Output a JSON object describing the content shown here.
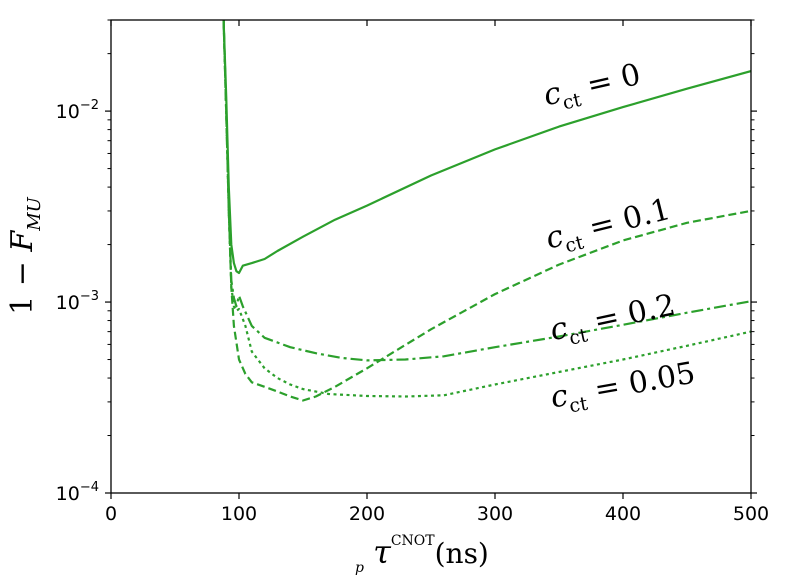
{
  "chart_data": {
    "type": "line",
    "title": "",
    "xlabel": "τ_p^CNOT(ns)",
    "ylabel": "1 − F_MU",
    "xlim": [
      0,
      500
    ],
    "ylim": [
      0.0001,
      0.03
    ],
    "yscale": "log",
    "grid": false,
    "legend": "none",
    "x_ticks": [
      0,
      100,
      200,
      300,
      400,
      500
    ],
    "x_tick_labels": [
      "0",
      "100",
      "200",
      "300",
      "400",
      "500"
    ],
    "y_ticks": [
      0.0001,
      0.001,
      0.01
    ],
    "y_tick_labels": [
      {
        "base": "10",
        "exp": "−4"
      },
      {
        "base": "10",
        "exp": "−3"
      },
      {
        "base": "10",
        "exp": "−2"
      }
    ],
    "series": [
      {
        "linestyle": "solid",
        "color": "#2ca02c",
        "x": [
          88,
          90,
          92,
          94,
          96,
          98,
          100,
          103,
          110,
          120,
          130,
          150,
          175,
          200,
          250,
          300,
          350,
          400,
          450,
          500
        ],
        "y": [
          0.03,
          0.012,
          0.004,
          0.002,
          0.0016,
          0.00145,
          0.00142,
          0.00155,
          0.0016,
          0.00168,
          0.00185,
          0.0022,
          0.0027,
          0.0032,
          0.0046,
          0.0063,
          0.0083,
          0.0105,
          0.0131,
          0.0162
        ]
      },
      {
        "linestyle": "dashed",
        "color": "#2ca02c",
        "x": [
          88,
          90,
          92,
          94,
          96,
          100,
          105,
          110,
          120,
          130,
          140,
          150,
          160,
          175,
          200,
          250,
          300,
          350,
          400,
          450,
          500
        ],
        "y": [
          0.03,
          0.01,
          0.003,
          0.0012,
          0.00075,
          0.0005,
          0.00042,
          0.00038,
          0.00036,
          0.00034,
          0.00032,
          0.000305,
          0.00032,
          0.00036,
          0.00045,
          0.00072,
          0.0011,
          0.00157,
          0.0021,
          0.0026,
          0.003
        ]
      },
      {
        "linestyle": "dashdot",
        "color": "#2ca02c",
        "x": [
          88,
          90,
          92,
          94,
          96,
          98,
          100,
          103,
          110,
          120,
          140,
          160,
          180,
          200,
          230,
          260,
          300,
          350,
          400,
          450,
          500
        ],
        "y": [
          0.03,
          0.01,
          0.003,
          0.0013,
          0.00105,
          0.00095,
          0.00108,
          0.00095,
          0.00075,
          0.00065,
          0.00058,
          0.00054,
          0.00051,
          0.000495,
          0.0005,
          0.00052,
          0.00058,
          0.00066,
          0.00076,
          0.00088,
          0.00101
        ]
      },
      {
        "linestyle": "dotted",
        "color": "#2ca02c",
        "x": [
          88,
          90,
          92,
          94,
          96,
          98,
          100,
          105,
          110,
          120,
          130,
          140,
          150,
          170,
          200,
          230,
          260,
          300,
          350,
          400,
          450,
          500
        ],
        "y": [
          0.03,
          0.01,
          0.003,
          0.0012,
          0.00095,
          0.0009,
          0.00092,
          0.00075,
          0.00055,
          0.00045,
          0.0004,
          0.00037,
          0.00035,
          0.00033,
          0.000322,
          0.00032,
          0.000325,
          0.00037,
          0.00043,
          0.0005,
          0.00059,
          0.0007
        ]
      }
    ],
    "annotations": [
      {
        "var": "c",
        "sub": "ct",
        "rest": " = 0",
        "rotation": -13
      },
      {
        "var": "c",
        "sub": "ct",
        "rest": " = 0.1",
        "rotation": -14
      },
      {
        "var": "c",
        "sub": "ct",
        "rest": " = 0.2",
        "rotation": -12
      },
      {
        "var": "c",
        "sub": "ct",
        "rest": " = 0.05",
        "rotation": -10
      }
    ],
    "axis_labels": {
      "x": {
        "main": "τ",
        "sub": "p",
        "sup": "CNOT",
        "unit": "(ns)"
      },
      "y": {
        "lead": "1 − ",
        "main": "F",
        "sub": "MU"
      }
    }
  }
}
